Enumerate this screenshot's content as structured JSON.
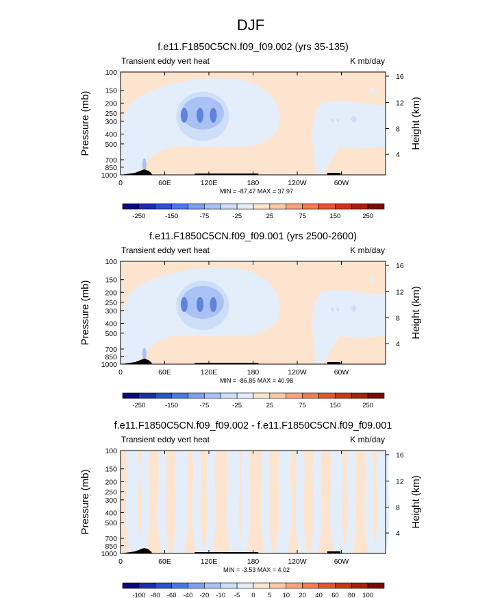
{
  "figure_title": "DJF",
  "colors": {
    "background_fill": "#fde4cf",
    "terrain": "#000000",
    "frame": "#000000"
  },
  "colorbars": [
    {
      "labels": [
        "-250",
        "-150",
        "-75",
        "-25",
        "25",
        "75",
        "150",
        "250"
      ],
      "colors": [
        "#0a0a78",
        "#1c2fa8",
        "#2a52d1",
        "#4a78e6",
        "#7d9fee",
        "#a9c1f5",
        "#cddff8",
        "#e4eefb",
        "#fde4cf",
        "#fbc9a8",
        "#f8a27c",
        "#f37c52",
        "#e6552e",
        "#cc3517",
        "#a8200c",
        "#7a0a04"
      ]
    },
    {
      "labels": [
        "-100",
        "-80",
        "-60",
        "-40",
        "-20",
        "-10",
        "-5",
        "0",
        "5",
        "10",
        "20",
        "40",
        "60",
        "80",
        "100"
      ],
      "colors": [
        "#0a0a78",
        "#1c2fa8",
        "#2a52d1",
        "#4a78e6",
        "#7d9fee",
        "#a9c1f5",
        "#cddff8",
        "#e4eefb",
        "#fde4cf",
        "#fbc9a8",
        "#f8a27c",
        "#f37c52",
        "#e6552e",
        "#cc3517",
        "#a8200c",
        "#7a0a04"
      ]
    }
  ],
  "chart_data": [
    {
      "type": "heatmap",
      "title": "f.e11.F1850C5CN.f09_f09.002 (yrs 35-135)",
      "left_string": "Transient eddy vert heat",
      "right_string": "K mb/day",
      "ylabel": "Pressure (mb)",
      "ylabel_right": "Height (km)",
      "xticks": [
        "0",
        "60E",
        "120E",
        "180",
        "120W",
        "60W"
      ],
      "yticks": [
        "100",
        "150",
        "200",
        "250",
        "300",
        "400",
        "500",
        "700",
        "850",
        "1000"
      ],
      "yticks_right": [
        "4",
        "8",
        "12",
        "16"
      ],
      "stats": "MIN = -87.47  MAX = 37.97",
      "colorbar": 0
    },
    {
      "type": "heatmap",
      "title": "f.e11.F1850C5CN.f09_f09.001 (yrs 2500-2600)",
      "left_string": "Transient eddy vert heat",
      "right_string": "K mb/day",
      "ylabel": "Pressure (mb)",
      "ylabel_right": "Height (km)",
      "xticks": [
        "0",
        "60E",
        "120E",
        "180",
        "120W",
        "60W"
      ],
      "yticks": [
        "100",
        "150",
        "200",
        "250",
        "300",
        "400",
        "500",
        "700",
        "850",
        "1000"
      ],
      "yticks_right": [
        "4",
        "8",
        "12",
        "16"
      ],
      "stats": "MIN = -86.85  MAX = 40.98",
      "colorbar": 0
    },
    {
      "type": "heatmap",
      "title": "f.e11.F1850C5CN.f09_f09.002 - f.e11.F1850C5CN.f09_f09.001",
      "left_string": "Transient eddy vert heat",
      "right_string": "K mb/day",
      "ylabel": "Pressure (mb)",
      "ylabel_right": "Height (km)",
      "xticks": [
        "0",
        "60E",
        "120E",
        "180",
        "120W",
        "60W"
      ],
      "yticks": [
        "100",
        "150",
        "200",
        "250",
        "300",
        "400",
        "500",
        "700",
        "850",
        "1000"
      ],
      "yticks_right": [
        "4",
        "8",
        "12",
        "16"
      ],
      "stats": "MIN = -3.53  MAX = 4.02",
      "colorbar": 1
    }
  ]
}
